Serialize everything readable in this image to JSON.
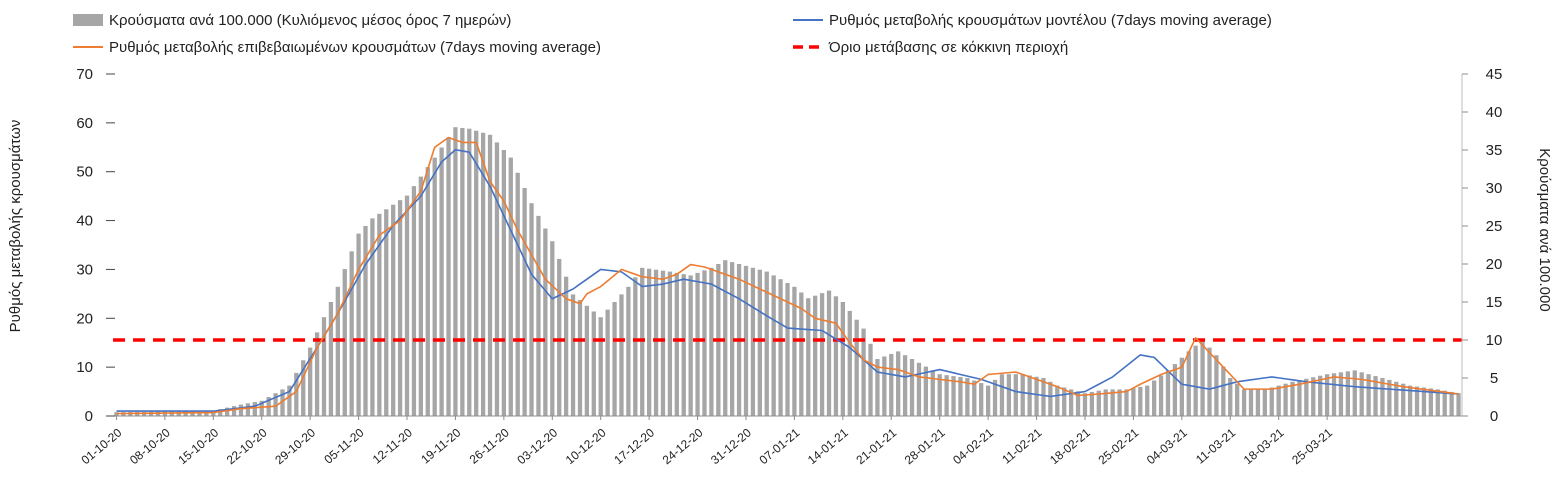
{
  "chart_data": {
    "type": "bar+line",
    "legend": [
      {
        "label": "Κρούσματα ανά 100.000 (Κυλιόμενος μέσος όρος 7 ημερών)",
        "kind": "bar",
        "color": "#a6a6a6"
      },
      {
        "label": "Ρυθμός μεταβολής κρουσμάτων μοντέλου (7days moving average)",
        "kind": "line",
        "color": "#4472c4"
      },
      {
        "label": "Ρυθμός μεταβολής επιβεβαιωμένων κρουσμάτων (7days moving average)",
        "kind": "line",
        "color": "#ed7d31"
      },
      {
        "label": "Όριο μετάβασης σε κόκκινη περιοχή",
        "kind": "dashed",
        "color": "#ff0000"
      }
    ],
    "legend_position": "top",
    "left_axis": {
      "label": "Ρυθμός μεταβολής κρουσμάτων",
      "ylim": [
        0,
        70
      ],
      "ticks": [
        0,
        10,
        20,
        30,
        40,
        50,
        60,
        70
      ]
    },
    "right_axis": {
      "label": "Κρούσματα ανά 100.000",
      "ylim": [
        0,
        45
      ],
      "ticks": [
        0,
        5,
        10,
        15,
        20,
        25,
        30,
        35,
        40,
        45
      ]
    },
    "x_ticks": [
      "01-10-20",
      "08-10-20",
      "15-10-20",
      "22-10-20",
      "29-10-20",
      "05-11-20",
      "12-11-20",
      "19-11-20",
      "26-11-20",
      "03-12-20",
      "10-12-20",
      "17-12-20",
      "24-12-20",
      "31-12-20",
      "07-01-21",
      "14-01-21",
      "21-01-21",
      "28-01-21",
      "04-02-21",
      "11-02-21",
      "18-02-21",
      "25-02-21",
      "04-03-21",
      "11-03-21",
      "18-03-21",
      "25-03-21"
    ],
    "threshold": {
      "axis": "right",
      "value": 10
    },
    "grid": false,
    "bars_axis": "right",
    "bars_keyframes": [
      [
        0,
        0.5
      ],
      [
        7,
        0.6
      ],
      [
        14,
        0.7
      ],
      [
        18,
        1.5
      ],
      [
        21,
        2
      ],
      [
        25,
        4
      ],
      [
        28,
        9
      ],
      [
        32,
        17
      ],
      [
        35,
        24
      ],
      [
        37,
        26
      ],
      [
        42,
        29
      ],
      [
        46,
        34
      ],
      [
        49,
        38
      ],
      [
        51,
        37.8
      ],
      [
        54,
        37
      ],
      [
        57,
        34
      ],
      [
        60,
        28
      ],
      [
        63,
        23
      ],
      [
        66,
        16
      ],
      [
        70,
        13
      ],
      [
        72,
        15
      ],
      [
        74,
        17
      ],
      [
        76,
        19.5
      ],
      [
        80,
        19
      ],
      [
        83,
        18.5
      ],
      [
        86,
        19.5
      ],
      [
        88,
        20.5
      ],
      [
        90,
        20
      ],
      [
        94,
        19
      ],
      [
        98,
        17
      ],
      [
        100,
        15.5
      ],
      [
        103,
        16.5
      ],
      [
        105,
        15
      ],
      [
        108,
        11.5
      ],
      [
        110,
        7.5
      ],
      [
        113,
        8.5
      ],
      [
        116,
        7
      ],
      [
        119,
        5.5
      ],
      [
        123,
        5
      ],
      [
        126,
        4
      ],
      [
        128,
        5.5
      ],
      [
        131,
        5.5
      ],
      [
        134,
        5
      ],
      [
        136,
        4
      ],
      [
        140,
        3
      ],
      [
        143,
        3.5
      ],
      [
        146,
        3.5
      ],
      [
        149,
        4
      ],
      [
        152,
        6
      ],
      [
        155,
        8.5
      ],
      [
        157,
        10
      ],
      [
        159,
        8
      ],
      [
        161,
        5
      ],
      [
        163,
        3.5
      ],
      [
        166,
        3.5
      ],
      [
        170,
        4.5
      ],
      [
        175,
        5.5
      ],
      [
        179,
        6
      ],
      [
        183,
        5
      ],
      [
        187,
        4
      ],
      [
        191,
        3.5
      ],
      [
        194,
        3
      ]
    ],
    "model_line_axis": "left",
    "model_line_keyframes": [
      [
        0,
        1
      ],
      [
        14,
        1
      ],
      [
        20,
        2
      ],
      [
        25,
        5
      ],
      [
        29,
        14
      ],
      [
        32,
        21
      ],
      [
        36,
        31
      ],
      [
        40,
        39
      ],
      [
        44,
        45
      ],
      [
        47,
        52
      ],
      [
        49,
        54.5
      ],
      [
        51,
        54
      ],
      [
        54,
        47
      ],
      [
        57,
        38
      ],
      [
        60,
        29
      ],
      [
        63,
        24
      ],
      [
        66,
        26
      ],
      [
        70,
        30
      ],
      [
        73,
        29.5
      ],
      [
        76,
        26.5
      ],
      [
        79,
        27
      ],
      [
        82,
        28
      ],
      [
        86,
        27
      ],
      [
        90,
        24
      ],
      [
        94,
        20.5
      ],
      [
        97,
        18
      ],
      [
        102,
        17.5
      ],
      [
        106,
        14
      ],
      [
        110,
        9
      ],
      [
        114,
        8
      ],
      [
        119,
        9.5
      ],
      [
        125,
        7.5
      ],
      [
        130,
        5
      ],
      [
        135,
        4
      ],
      [
        140,
        5
      ],
      [
        144,
        8
      ],
      [
        148,
        12.5
      ],
      [
        150,
        12
      ],
      [
        154,
        6.5
      ],
      [
        158,
        5.5
      ],
      [
        162,
        7
      ],
      [
        167,
        8
      ],
      [
        172,
        7
      ],
      [
        179,
        6
      ],
      [
        194,
        4.5
      ]
    ],
    "confirmed_line_axis": "left",
    "confirmed_line_keyframes": [
      [
        0,
        0.5
      ],
      [
        14,
        0.7
      ],
      [
        18,
        1.5
      ],
      [
        23,
        2
      ],
      [
        26,
        5
      ],
      [
        29,
        14
      ],
      [
        32,
        21
      ],
      [
        35,
        30
      ],
      [
        38,
        37
      ],
      [
        41,
        40
      ],
      [
        44,
        46
      ],
      [
        46,
        55
      ],
      [
        48,
        57
      ],
      [
        50,
        56
      ],
      [
        52,
        56
      ],
      [
        54,
        48
      ],
      [
        56,
        44
      ],
      [
        58,
        38
      ],
      [
        60,
        33
      ],
      [
        62,
        28
      ],
      [
        65,
        24
      ],
      [
        67,
        23
      ],
      [
        68,
        25
      ],
      [
        70,
        26.5
      ],
      [
        73,
        30
      ],
      [
        76,
        28.5
      ],
      [
        79,
        28
      ],
      [
        81,
        29
      ],
      [
        83,
        31
      ],
      [
        85,
        30.5
      ],
      [
        87,
        29.5
      ],
      [
        90,
        28
      ],
      [
        93,
        26
      ],
      [
        96,
        24
      ],
      [
        99,
        22
      ],
      [
        101,
        20
      ],
      [
        104,
        19
      ],
      [
        106,
        15
      ],
      [
        108,
        11.5
      ],
      [
        110,
        10
      ],
      [
        113,
        9.5
      ],
      [
        116,
        8
      ],
      [
        119,
        7.5
      ],
      [
        122,
        7
      ],
      [
        124,
        6.5
      ],
      [
        126,
        8.5
      ],
      [
        130,
        9
      ],
      [
        133,
        7.5
      ],
      [
        136,
        6
      ],
      [
        139,
        4.2
      ],
      [
        142,
        4.5
      ],
      [
        146,
        5
      ],
      [
        148,
        6.5
      ],
      [
        151,
        8.5
      ],
      [
        154,
        10
      ],
      [
        156,
        16
      ],
      [
        158,
        13
      ],
      [
        160,
        10
      ],
      [
        163,
        5.5
      ],
      [
        167,
        5.5
      ],
      [
        171,
        6.5
      ],
      [
        176,
        8
      ],
      [
        180,
        7.5
      ],
      [
        186,
        6
      ],
      [
        194,
        4.5
      ]
    ]
  }
}
